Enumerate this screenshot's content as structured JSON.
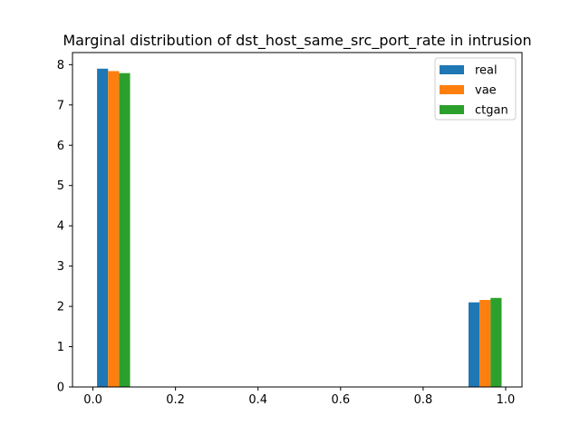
{
  "chart_data": {
    "type": "bar",
    "title": "Marginal distribution of dst_host_same_src_port_rate in intrusion",
    "xlabel": "",
    "ylabel": "",
    "xlim": [
      -0.0495,
      1.0395
    ],
    "ylim": [
      0,
      8.3
    ],
    "xticks": [
      0.0,
      0.2,
      0.4,
      0.6,
      0.8,
      1.0
    ],
    "xtick_labels": [
      "0.0",
      "0.2",
      "0.4",
      "0.6",
      "0.8",
      "1.0"
    ],
    "yticks": [
      0,
      1,
      2,
      3,
      4,
      5,
      6,
      7,
      8
    ],
    "ytick_labels": [
      "0",
      "1",
      "2",
      "3",
      "4",
      "5",
      "6",
      "7",
      "8"
    ],
    "grid": false,
    "legend_position": "top-right",
    "bins": [
      [
        0.0,
        0.1
      ],
      [
        0.9,
        1.0
      ]
    ],
    "series": [
      {
        "name": "real",
        "color": "#1f77b4",
        "values": [
          7.9,
          2.1
        ]
      },
      {
        "name": "vae",
        "color": "#ff7f0e",
        "values": [
          7.84,
          2.16
        ]
      },
      {
        "name": "ctgan",
        "color": "#2ca02c",
        "values": [
          7.79,
          2.21
        ]
      }
    ]
  }
}
